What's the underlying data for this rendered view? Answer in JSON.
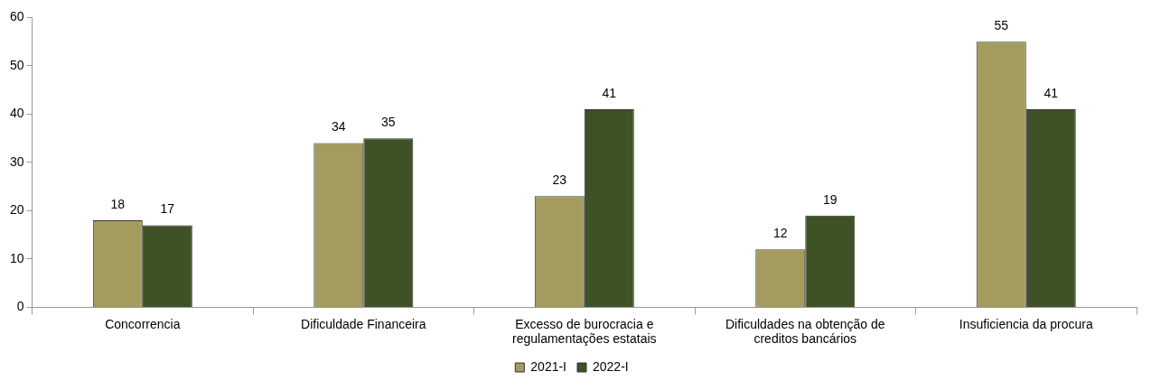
{
  "chart_data": {
    "type": "bar",
    "categories": [
      "Concorrencia",
      "Dificuldade Financeira",
      "Excesso de burocracia e regulamentações estatais",
      "Dificuldades na obtenção de creditos bancários",
      "Insuficiencia da procura"
    ],
    "series": [
      {
        "name": "2021-I",
        "color": "#a39c5e",
        "values": [
          18,
          34,
          23,
          12,
          55
        ]
      },
      {
        "name": "2022-I",
        "color": "#3e5226",
        "values": [
          17,
          35,
          41,
          19,
          41
        ]
      }
    ],
    "ylim": [
      0,
      60
    ],
    "yticks": [
      0,
      10,
      20,
      30,
      40,
      50,
      60
    ],
    "data_labels": true,
    "legend": "bottom"
  }
}
